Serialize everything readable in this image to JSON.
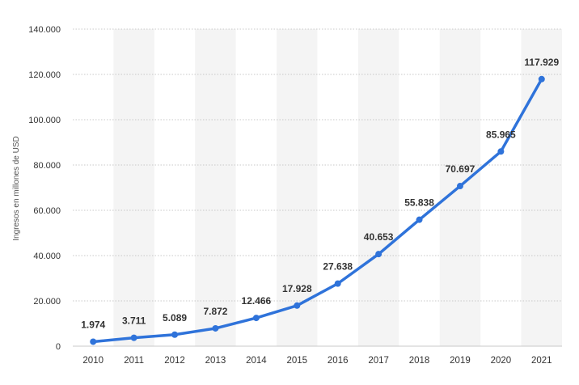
{
  "chart_data": {
    "type": "line",
    "title": "",
    "xlabel": "",
    "ylabel": "Ingresos en millones de USD",
    "ylim": [
      0,
      140000
    ],
    "yticks": [
      0,
      20000,
      40000,
      60000,
      80000,
      100000,
      120000,
      140000
    ],
    "ytick_labels": [
      "0",
      "20.000",
      "40.000",
      "60.000",
      "80.000",
      "100.000",
      "120.000",
      "140.000"
    ],
    "grid": true,
    "legend": "none",
    "categories": [
      "2010",
      "2011",
      "2012",
      "2013",
      "2014",
      "2015",
      "2016",
      "2017",
      "2018",
      "2019",
      "2020",
      "2021"
    ],
    "series": [
      {
        "values": [
          1974,
          3711,
          5089,
          7872,
          12466,
          17928,
          27638,
          40653,
          55838,
          70697,
          85965,
          117929
        ],
        "labels": [
          "1.974",
          "3.711",
          "5.089",
          "7.872",
          "12.466",
          "17.928",
          "27.638",
          "40.653",
          "55.838",
          "70.697",
          "85.965",
          "117.929"
        ],
        "color": "#2f73da"
      }
    ],
    "band_color": "#f4f4f4",
    "grid_color": "#c8c8c8"
  }
}
